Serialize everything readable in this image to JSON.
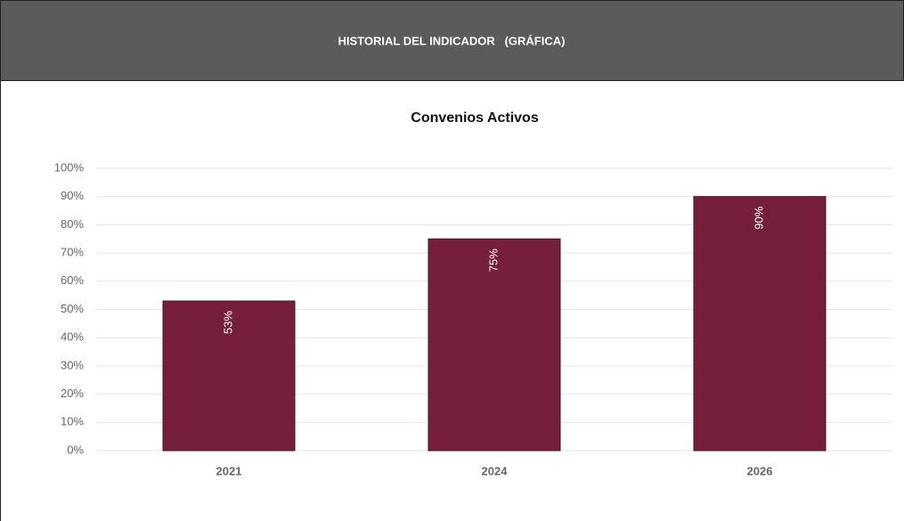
{
  "header": {
    "title": "HISTORIAL DEL INDICADOR   (GRÁFICA)"
  },
  "chart_data": {
    "type": "bar",
    "title": "Convenios Activos",
    "categories": [
      "2021",
      "2024",
      "2026"
    ],
    "values": [
      53,
      75,
      90
    ],
    "value_labels": [
      "53%",
      "75%",
      "90%"
    ],
    "color": "#761f3b",
    "ylim": [
      0,
      100
    ],
    "yticks": [
      {
        "value": 0,
        "label": "0%"
      },
      {
        "value": 10,
        "label": "10%"
      },
      {
        "value": 20,
        "label": "20%"
      },
      {
        "value": 30,
        "label": "30%"
      },
      {
        "value": 40,
        "label": "40%"
      },
      {
        "value": 50,
        "label": "50%"
      },
      {
        "value": 60,
        "label": "60%"
      },
      {
        "value": 70,
        "label": "70%"
      },
      {
        "value": 80,
        "label": "80%"
      },
      {
        "value": 90,
        "label": "90%"
      },
      {
        "value": 100,
        "label": "100%"
      }
    ],
    "grid": true
  }
}
